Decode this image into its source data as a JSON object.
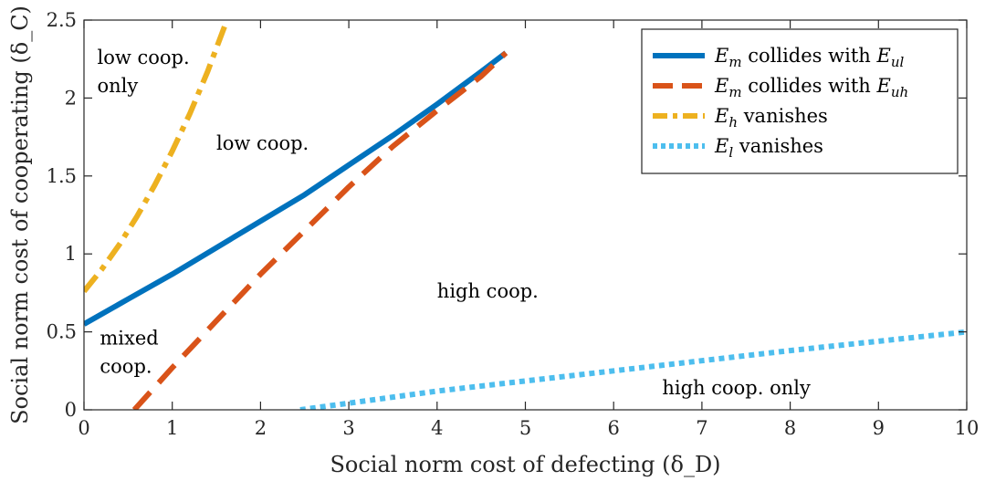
{
  "chart_data": {
    "type": "line",
    "xlabel": "Social norm cost of defecting (δ_D)",
    "ylabel": "Social norm cost of cooperating (δ_C)",
    "xlim": [
      0,
      10
    ],
    "ylim": [
      0,
      2.5
    ],
    "x_ticks": [
      "0",
      "1",
      "2",
      "3",
      "4",
      "5",
      "6",
      "7",
      "8",
      "9",
      "10"
    ],
    "y_ticks": [
      "0",
      "0.5",
      "1",
      "1.5",
      "2",
      "2.5"
    ],
    "grid": false,
    "legend_position": "top-right",
    "series": [
      {
        "name": "E_m collides with E_ul",
        "legend_main": "E",
        "legend_sub": "m",
        "legend_mid": " collides with ",
        "legend_main2": "E",
        "legend_sub2": "ul",
        "color": "#0072BD",
        "style": "solid",
        "x": [
          0,
          0.5,
          1,
          1.5,
          2,
          2.5,
          3,
          3.5,
          4,
          4.5,
          4.78
        ],
        "y": [
          0.55,
          0.71,
          0.87,
          1.04,
          1.21,
          1.38,
          1.57,
          1.76,
          1.96,
          2.17,
          2.29
        ]
      },
      {
        "name": "E_m collides with E_uh",
        "legend_main": "E",
        "legend_sub": "m",
        "legend_mid": " collides with ",
        "legend_main2": "E",
        "legend_sub2": "uh",
        "color": "#D95319",
        "style": "dashed",
        "x": [
          0.57,
          1,
          1.5,
          2,
          2.5,
          3,
          3.5,
          4,
          4.5,
          4.78
        ],
        "y": [
          0,
          0.27,
          0.57,
          0.87,
          1.15,
          1.43,
          1.69,
          1.92,
          2.14,
          2.29
        ]
      },
      {
        "name": "E_h vanishes",
        "legend_main": "E",
        "legend_sub": "h",
        "legend_mid": " vanishes",
        "legend_main2": "",
        "legend_sub2": "",
        "color": "#EDB120",
        "style": "dashdot",
        "x": [
          0,
          0.2,
          0.4,
          0.6,
          0.8,
          1.0,
          1.2,
          1.4,
          1.6
        ],
        "y": [
          0.76,
          0.9,
          1.06,
          1.24,
          1.44,
          1.66,
          1.9,
          2.17,
          2.47
        ]
      },
      {
        "name": "E_l vanishes",
        "legend_main": "E",
        "legend_sub": "l",
        "legend_mid": " vanishes",
        "legend_main2": "",
        "legend_sub2": "",
        "color": "#4DBEEE",
        "style": "dotted",
        "x": [
          2.45,
          4,
          6,
          8,
          10
        ],
        "y": [
          0,
          0.12,
          0.25,
          0.38,
          0.5
        ]
      }
    ],
    "annotations": [
      {
        "lines": [
          "low coop.",
          "only"
        ],
        "x": 0.15,
        "y": 2.22
      },
      {
        "lines": [
          "low coop."
        ],
        "x": 1.5,
        "y": 1.67
      },
      {
        "lines": [
          "high coop."
        ],
        "x": 4.0,
        "y": 0.72
      },
      {
        "lines": [
          "mixed",
          "coop."
        ],
        "x": 0.18,
        "y": 0.42
      },
      {
        "lines": [
          "high coop. only"
        ],
        "x": 6.55,
        "y": 0.1
      }
    ]
  }
}
